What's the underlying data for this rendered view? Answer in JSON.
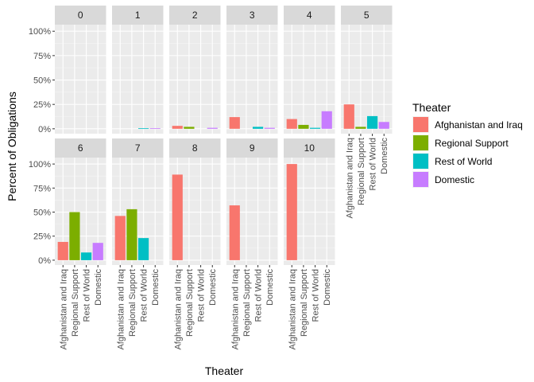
{
  "chart_data": {
    "type": "bar",
    "facet_by": "year index",
    "panels": [
      "0",
      "1",
      "2",
      "3",
      "4",
      "5",
      "6",
      "7",
      "8",
      "9",
      "10"
    ],
    "categories": [
      "Afghanistan and Iraq",
      "Regional Support",
      "Rest of World",
      "Domestic"
    ],
    "values": {
      "0": [
        0,
        0,
        0,
        0
      ],
      "1": [
        0,
        0,
        0.5,
        0.5
      ],
      "2": [
        3,
        2,
        0,
        1
      ],
      "3": [
        12,
        0,
        2,
        1
      ],
      "4": [
        10,
        4,
        1,
        18
      ],
      "5": [
        25,
        2,
        13,
        7
      ],
      "6": [
        19,
        50,
        8,
        18
      ],
      "7": [
        46,
        53,
        23,
        0
      ],
      "8": [
        89,
        0,
        0,
        0
      ],
      "9": [
        57,
        0,
        0,
        0
      ],
      "10": [
        100,
        0,
        0,
        0
      ]
    },
    "xlabel": "Theater",
    "ylabel": "Percent of Obligations",
    "y_ticks": [
      "0%",
      "25%",
      "50%",
      "75%",
      "100%"
    ],
    "ylim": [
      0,
      100
    ],
    "grid": true,
    "legend": {
      "title": "Theater",
      "placement": "right",
      "entries": [
        "Afghanistan and Iraq",
        "Regional Support",
        "Rest of World",
        "Domestic"
      ]
    },
    "colors": [
      "#F8766D",
      "#7CAE00",
      "#00BFC4",
      "#C77CFF"
    ]
  }
}
